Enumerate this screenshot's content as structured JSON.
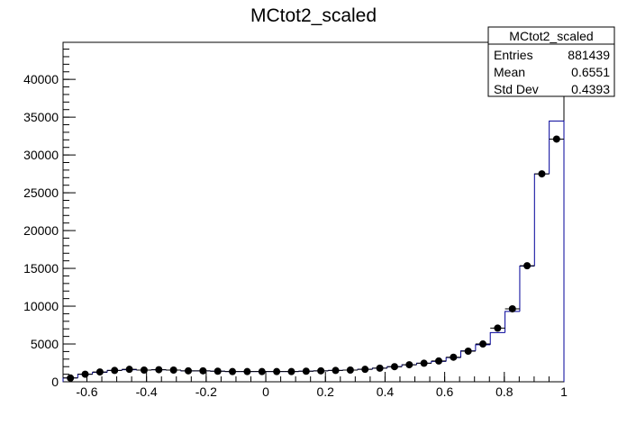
{
  "chart_data": {
    "type": "histogram",
    "title": "MCtot2_scaled",
    "bins": [
      -0.68,
      -0.6306,
      -0.5812,
      -0.5318,
      -0.4824,
      -0.4329,
      -0.3835,
      -0.3341,
      -0.2847,
      -0.2353,
      -0.1859,
      -0.1365,
      -0.0871,
      -0.0376,
      0.0118,
      0.0612,
      0.1106,
      0.16,
      0.2094,
      0.2588,
      0.3082,
      0.3576,
      0.4071,
      0.4565,
      0.5059,
      0.5553,
      0.6047,
      0.6541,
      0.7035,
      0.7529,
      0.8024,
      0.8518,
      0.9012,
      0.9506,
      1
    ],
    "series": [
      {
        "style": "step",
        "color": "#000099",
        "values": [
          500,
          1000,
          1250,
          1500,
          1600,
          1550,
          1600,
          1550,
          1450,
          1450,
          1400,
          1350,
          1350,
          1350,
          1350,
          1350,
          1400,
          1450,
          1500,
          1550,
          1650,
          1800,
          2000,
          2250,
          2450,
          2700,
          3200,
          4100,
          4900,
          6500,
          9300,
          15300,
          27500,
          34500
        ]
      },
      {
        "style": "markers",
        "color": "#000000",
        "values": [
          500,
          1000,
          1300,
          1500,
          1650,
          1550,
          1600,
          1550,
          1450,
          1450,
          1400,
          1350,
          1350,
          1350,
          1350,
          1350,
          1400,
          1450,
          1500,
          1550,
          1650,
          1800,
          2000,
          2250,
          2450,
          2750,
          3250,
          4050,
          5000,
          7100,
          9650,
          15350,
          27500,
          32100
        ]
      }
    ],
    "xlim": [
      -0.68,
      1
    ],
    "xticks": [
      -0.6,
      -0.4,
      -0.2,
      0,
      0.2,
      0.4,
      0.6,
      0.8,
      1
    ],
    "ylim": [
      0,
      44900
    ],
    "yticks": [
      0,
      5000,
      10000,
      15000,
      20000,
      25000,
      30000,
      35000,
      40000
    ],
    "stats_box": {
      "title": "MCtot2_scaled",
      "rows": [
        {
          "label": "Entries",
          "value": "881439"
        },
        {
          "label": "Mean",
          "value": "0.6551"
        },
        {
          "label": "Std Dev",
          "value": "0.4393"
        }
      ]
    }
  }
}
